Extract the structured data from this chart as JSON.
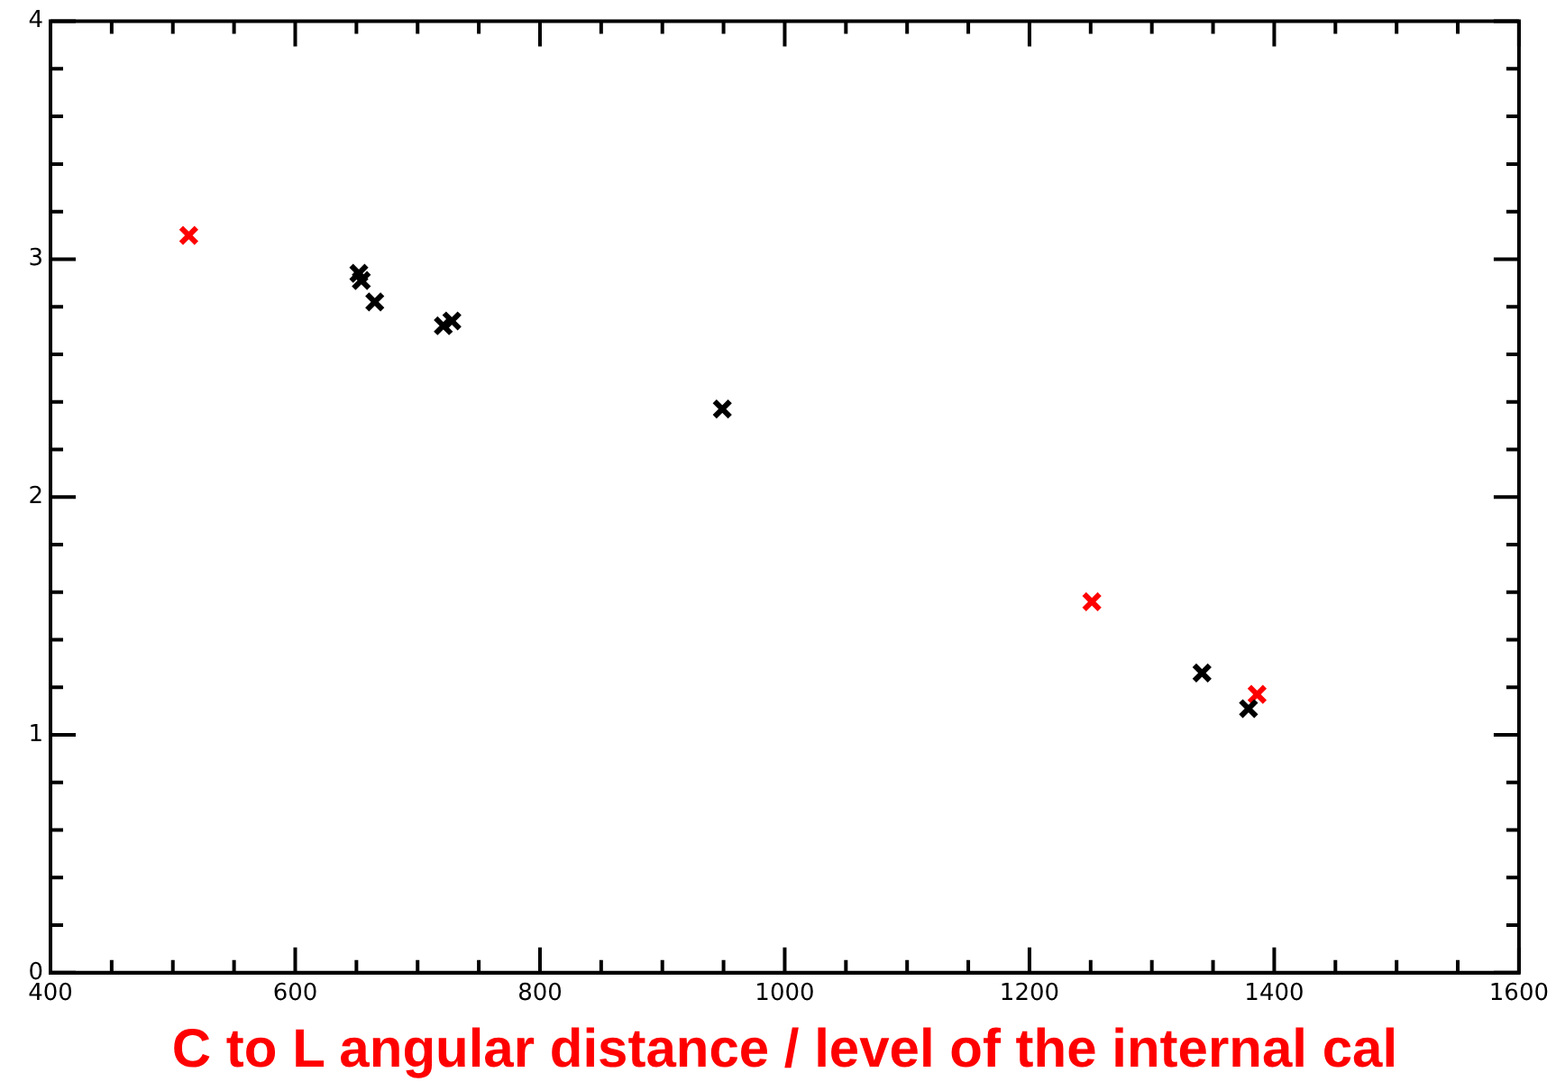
{
  "chart_data": {
    "type": "scatter",
    "xlabel": "C to L angular distance / level of the internal cal",
    "marker": "cross",
    "grid": false,
    "legend": false,
    "xlim": [
      400,
      1600
    ],
    "xticks": [
      400,
      {
        "value": 450,
        "label": null
      },
      {
        "value": 500,
        "label": null
      },
      {
        "value": 550,
        "label": null
      },
      600,
      {
        "value": 650,
        "label": null
      },
      {
        "value": 700,
        "label": null
      },
      {
        "value": 750,
        "label": null
      },
      800,
      {
        "value": 850,
        "label": null
      },
      {
        "value": 900,
        "label": null
      },
      {
        "value": 950,
        "label": null
      },
      1000,
      {
        "value": 1050,
        "label": null
      },
      {
        "value": 1100,
        "label": null
      },
      {
        "value": 1150,
        "label": null
      },
      1200,
      {
        "value": 1250,
        "label": null
      },
      {
        "value": 1300,
        "label": null
      },
      {
        "value": 1350,
        "label": null
      },
      1400,
      {
        "value": 1450,
        "label": null
      },
      {
        "value": 1500,
        "label": null
      },
      {
        "value": 1550,
        "label": null
      },
      1600
    ],
    "ylim": [
      0,
      4
    ],
    "yticks": [
      0,
      {
        "value": 0.2,
        "label": null
      },
      {
        "value": 0.4,
        "label": null
      },
      {
        "value": 0.6,
        "label": null
      },
      {
        "value": 0.8,
        "label": null
      },
      1,
      {
        "value": 1.2,
        "label": null
      },
      {
        "value": 1.4,
        "label": null
      },
      {
        "value": 1.6,
        "label": null
      },
      {
        "value": 1.8,
        "label": null
      },
      2,
      {
        "value": 2.2,
        "label": null
      },
      {
        "value": 2.4,
        "label": null
      },
      {
        "value": 2.6,
        "label": null
      },
      {
        "value": 2.8,
        "label": null
      },
      3,
      {
        "value": 3.2,
        "label": null
      },
      {
        "value": 3.4,
        "label": null
      },
      {
        "value": 3.6,
        "label": null
      },
      {
        "value": 3.8,
        "label": null
      },
      4
    ],
    "series": [
      {
        "color": "#000000",
        "x": [
          652,
          654,
          665,
          721,
          728,
          949,
          1341,
          1379
        ],
        "values": [
          2.94,
          2.91,
          2.82,
          2.72,
          2.74,
          2.37,
          1.26,
          1.11
        ]
      },
      {
        "color": "#ff0000",
        "x": [
          513,
          1251,
          1386
        ],
        "values": [
          3.1,
          1.56,
          1.17
        ]
      }
    ]
  }
}
